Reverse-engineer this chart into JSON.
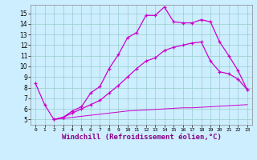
{
  "background_color": "#cceeff",
  "line_color": "#cc00cc",
  "xlabel": "Windchill (Refroidissement éolien,°C)",
  "xlabel_fontsize": 6.5,
  "ylabel_ticks": [
    5,
    6,
    7,
    8,
    9,
    10,
    11,
    12,
    13,
    14,
    15
  ],
  "xlim": [
    -0.5,
    23.5
  ],
  "ylim": [
    4.5,
    15.8
  ],
  "xtick_labels": [
    "0",
    "1",
    "2",
    "3",
    "4",
    "5",
    "6",
    "7",
    "8",
    "9",
    "10",
    "11",
    "12",
    "13",
    "14",
    "15",
    "16",
    "17",
    "18",
    "19",
    "20",
    "21",
    "22",
    "23"
  ],
  "series1": [
    [
      0,
      8.4
    ],
    [
      1,
      6.4
    ],
    [
      2,
      5.0
    ],
    [
      3,
      5.2
    ],
    [
      4,
      5.8
    ],
    [
      5,
      6.2
    ],
    [
      6,
      7.5
    ],
    [
      7,
      8.1
    ],
    [
      8,
      9.8
    ],
    [
      9,
      11.1
    ],
    [
      10,
      12.7
    ],
    [
      11,
      13.2
    ],
    [
      12,
      14.8
    ],
    [
      13,
      14.8
    ],
    [
      14,
      15.6
    ],
    [
      15,
      14.2
    ],
    [
      16,
      14.1
    ],
    [
      17,
      14.1
    ],
    [
      18,
      14.4
    ],
    [
      19,
      14.2
    ],
    [
      20,
      12.3
    ],
    [
      21,
      11.0
    ],
    [
      22,
      9.6
    ],
    [
      23,
      7.8
    ]
  ],
  "series2": [
    [
      2,
      5.0
    ],
    [
      3,
      5.2
    ],
    [
      4,
      5.6
    ],
    [
      5,
      6.0
    ],
    [
      6,
      6.4
    ],
    [
      7,
      6.8
    ],
    [
      8,
      7.5
    ],
    [
      9,
      8.2
    ],
    [
      10,
      9.0
    ],
    [
      11,
      9.8
    ],
    [
      12,
      10.5
    ],
    [
      13,
      10.8
    ],
    [
      14,
      11.5
    ],
    [
      15,
      11.8
    ],
    [
      16,
      12.0
    ],
    [
      17,
      12.2
    ],
    [
      18,
      12.3
    ],
    [
      19,
      10.5
    ],
    [
      20,
      9.5
    ],
    [
      21,
      9.3
    ],
    [
      22,
      8.8
    ],
    [
      23,
      7.8
    ]
  ],
  "series3": [
    [
      2,
      5.0
    ],
    [
      3,
      5.1
    ],
    [
      4,
      5.2
    ],
    [
      5,
      5.3
    ],
    [
      6,
      5.4
    ],
    [
      7,
      5.5
    ],
    [
      8,
      5.6
    ],
    [
      9,
      5.7
    ],
    [
      10,
      5.8
    ],
    [
      11,
      5.85
    ],
    [
      12,
      5.9
    ],
    [
      13,
      5.95
    ],
    [
      14,
      6.0
    ],
    [
      15,
      6.05
    ],
    [
      16,
      6.1
    ],
    [
      17,
      6.1
    ],
    [
      18,
      6.15
    ],
    [
      19,
      6.2
    ],
    [
      20,
      6.25
    ],
    [
      21,
      6.3
    ],
    [
      22,
      6.35
    ],
    [
      23,
      6.4
    ]
  ]
}
